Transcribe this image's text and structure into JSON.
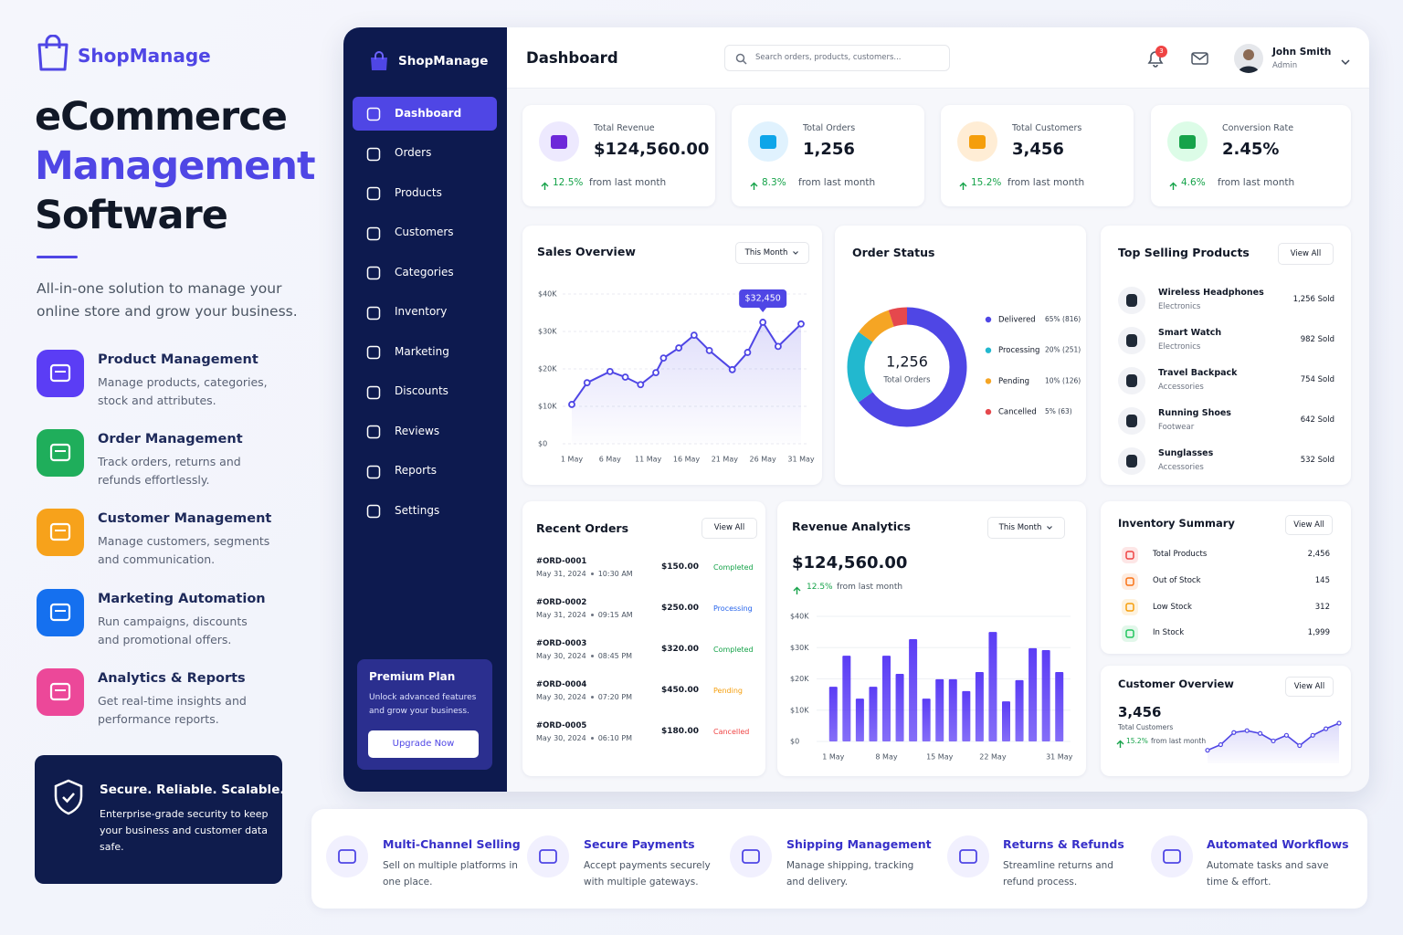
{
  "brand": "ShopManage",
  "hero": {
    "title": [
      "eCommerce",
      "Management",
      "Software"
    ],
    "subtitle": "All-in-one solution to manage your online store and grow your business."
  },
  "features": [
    {
      "title": "Product Management",
      "desc": "Manage products, categories, stock and attributes.",
      "color": "#5b3df5"
    },
    {
      "title": "Order Management",
      "desc": "Track orders, returns and refunds effortlessly.",
      "color": "#1fae5b"
    },
    {
      "title": "Customer Management",
      "desc": "Manage customers, segments and communication.",
      "color": "#f7a21b"
    },
    {
      "title": "Marketing Automation",
      "desc": "Run campaigns, discounts and promotional offers.",
      "color": "#1570ef"
    },
    {
      "title": "Analytics & Reports",
      "desc": "Get real-time insights and performance reports.",
      "color": "#ec4899"
    }
  ],
  "secure": {
    "title": "Secure. Reliable. Scalable.",
    "desc": "Enterprise-grade security to keep your business and customer data safe."
  },
  "sidebar": {
    "brand": "ShopManage",
    "nav": [
      {
        "label": "Dashboard",
        "active": true
      },
      {
        "label": "Orders"
      },
      {
        "label": "Products"
      },
      {
        "label": "Customers"
      },
      {
        "label": "Categories"
      },
      {
        "label": "Inventory"
      },
      {
        "label": "Marketing"
      },
      {
        "label": "Discounts"
      },
      {
        "label": "Reviews"
      },
      {
        "label": "Reports"
      },
      {
        "label": "Settings"
      }
    ],
    "premium": {
      "title": "Premium Plan",
      "desc": "Unlock advanced features and grow your business.",
      "button": "Upgrade Now"
    }
  },
  "header": {
    "title": "Dashboard",
    "search": "Search orders, products, customers...",
    "notifications": "3",
    "user": {
      "name": "John Smith",
      "role": "Admin"
    }
  },
  "stats": [
    {
      "label": "Total Revenue",
      "value": "$124,560.00",
      "change": "12.5%",
      "note": "from last month"
    },
    {
      "label": "Total Orders",
      "value": "1,256",
      "change": "8.3%",
      "note": "from last month"
    },
    {
      "label": "Total Customers",
      "value": "3,456",
      "change": "15.2%",
      "note": "from last month"
    },
    {
      "label": "Conversion Rate",
      "value": "2.45%",
      "change": "4.6%",
      "note": "from last month"
    }
  ],
  "chart_data": [
    {
      "type": "line",
      "title": "Sales Overview",
      "filter": "This Month",
      "color": "#4f46e5",
      "x": [
        1,
        3,
        6,
        8,
        10,
        12,
        13,
        15,
        17,
        19,
        22,
        24,
        26,
        28,
        31
      ],
      "values": [
        10500,
        16300,
        19300,
        17800,
        15800,
        19000,
        22900,
        25600,
        29000,
        24900,
        19800,
        24400,
        32450,
        26000,
        32000
      ],
      "value_labels": [
        null,
        null,
        null,
        null,
        null,
        null,
        null,
        null,
        null,
        null,
        null,
        null,
        "$32,450",
        null,
        null
      ],
      "xlim": [
        1,
        31
      ],
      "xticks": [
        {
          "value": 1,
          "label": "1 May"
        },
        {
          "value": 6,
          "label": "6 May"
        },
        {
          "value": 11,
          "label": "11 May"
        },
        {
          "value": 16,
          "label": "16 May"
        },
        {
          "value": 21,
          "label": "21 May"
        },
        {
          "value": 26,
          "label": "26 May"
        },
        {
          "value": 31,
          "label": "31 May"
        }
      ],
      "ylim": [
        0,
        40000
      ],
      "yticks": [
        {
          "value": 0,
          "label": "$0"
        },
        {
          "value": 10000,
          "label": "$10K"
        },
        {
          "value": 20000,
          "label": "$20K"
        },
        {
          "value": 30000,
          "label": "$30K"
        },
        {
          "value": 40000,
          "label": "$40K"
        }
      ],
      "grid": true
    },
    {
      "type": "donut",
      "title": "Order Status",
      "center_value": "1,256",
      "center_label": "Total Orders",
      "categories": [
        "Delivered",
        "Processing",
        "Pending",
        "Cancelled"
      ],
      "values": [
        65,
        20,
        10,
        5
      ],
      "value_labels": [
        "65% (816)",
        "20% (251)",
        "10% (126)",
        "5% (63)"
      ],
      "colors": [
        "#4f46e5",
        "#22b8cf",
        "#f5a524",
        "#e5484d"
      ]
    },
    {
      "type": "bar",
      "title": "Revenue Analytics",
      "filter": "This Month",
      "total": "$124,560.00",
      "change": "12.5%",
      "note": "from last month",
      "color": "#5b3df5",
      "categories": [
        "1 May",
        null,
        null,
        null,
        "8 May",
        null,
        null,
        null,
        "15 May",
        null,
        null,
        null,
        "22 May",
        null,
        null,
        null,
        null,
        "31 May"
      ],
      "values": [
        17500,
        27400,
        13700,
        17500,
        27400,
        21600,
        32700,
        13700,
        19900,
        19900,
        16100,
        22200,
        35000,
        12800,
        19600,
        29800,
        29200,
        22200
      ],
      "ylim": [
        0,
        40000
      ],
      "yticks": [
        {
          "value": 0,
          "label": "$0"
        },
        {
          "value": 10000,
          "label": "$10K"
        },
        {
          "value": 20000,
          "label": "$20K"
        },
        {
          "value": 30000,
          "label": "$30K"
        },
        {
          "value": 40000,
          "label": "$40K"
        }
      ]
    },
    {
      "type": "sparkline",
      "title": "Customer Overview",
      "action": "View All",
      "total": "3,456",
      "total_label": "Total Customers",
      "change": "15.2%",
      "note": "from last month",
      "color": "#4f46e5",
      "values": [
        14,
        20,
        33,
        35,
        32,
        24,
        30,
        19,
        30,
        37,
        43
      ]
    }
  ],
  "top_products": {
    "title": "Top Selling Products",
    "action": "View All",
    "items": [
      {
        "name": "Wireless Headphones",
        "category": "Electronics",
        "sold": "1,256 Sold"
      },
      {
        "name": "Smart Watch",
        "category": "Electronics",
        "sold": "982 Sold"
      },
      {
        "name": "Travel Backpack",
        "category": "Accessories",
        "sold": "754 Sold"
      },
      {
        "name": "Running Shoes",
        "category": "Footwear",
        "sold": "642 Sold"
      },
      {
        "name": "Sunglasses",
        "category": "Accessories",
        "sold": "532 Sold"
      }
    ]
  },
  "recent_orders": {
    "title": "Recent Orders",
    "action": "View All",
    "rows": [
      {
        "id": "#ORD-0001",
        "date": "May 31, 2024",
        "time": "10:30 AM",
        "amount": "$150.00",
        "status": "Completed",
        "color": "#16a34a"
      },
      {
        "id": "#ORD-0002",
        "date": "May 31, 2024",
        "time": "09:15 AM",
        "amount": "$250.00",
        "status": "Processing",
        "color": "#2563eb"
      },
      {
        "id": "#ORD-0003",
        "date": "May 30, 2024",
        "time": "08:45 PM",
        "amount": "$320.00",
        "status": "Completed",
        "color": "#16a34a"
      },
      {
        "id": "#ORD-0004",
        "date": "May 30, 2024",
        "time": "07:20 PM",
        "amount": "$450.00",
        "status": "Pending",
        "color": "#f59e0b"
      },
      {
        "id": "#ORD-0005",
        "date": "May 30, 2024",
        "time": "06:10 PM",
        "amount": "$180.00",
        "status": "Cancelled",
        "color": "#ef4444"
      }
    ]
  },
  "inventory": {
    "title": "Inventory Summary",
    "action": "View All",
    "items": [
      {
        "label": "Total Products",
        "value": "2,456",
        "color": "#ef4444"
      },
      {
        "label": "Out of Stock",
        "value": "145",
        "color": "#f97316"
      },
      {
        "label": "Low Stock",
        "value": "312",
        "color": "#f59e0b"
      },
      {
        "label": "In Stock",
        "value": "1,999",
        "color": "#22c55e"
      }
    ]
  },
  "highlights": [
    {
      "title": "Multi-Channel Selling",
      "desc": "Sell on multiple platforms in one place."
    },
    {
      "title": "Secure Payments",
      "desc": "Accept payments securely with multiple gateways."
    },
    {
      "title": "Shipping Management",
      "desc": "Manage shipping, tracking and delivery."
    },
    {
      "title": "Returns & Refunds",
      "desc": "Streamline returns and refund process."
    },
    {
      "title": "Automated Workflows",
      "desc": "Automate tasks and save time & effort."
    }
  ]
}
